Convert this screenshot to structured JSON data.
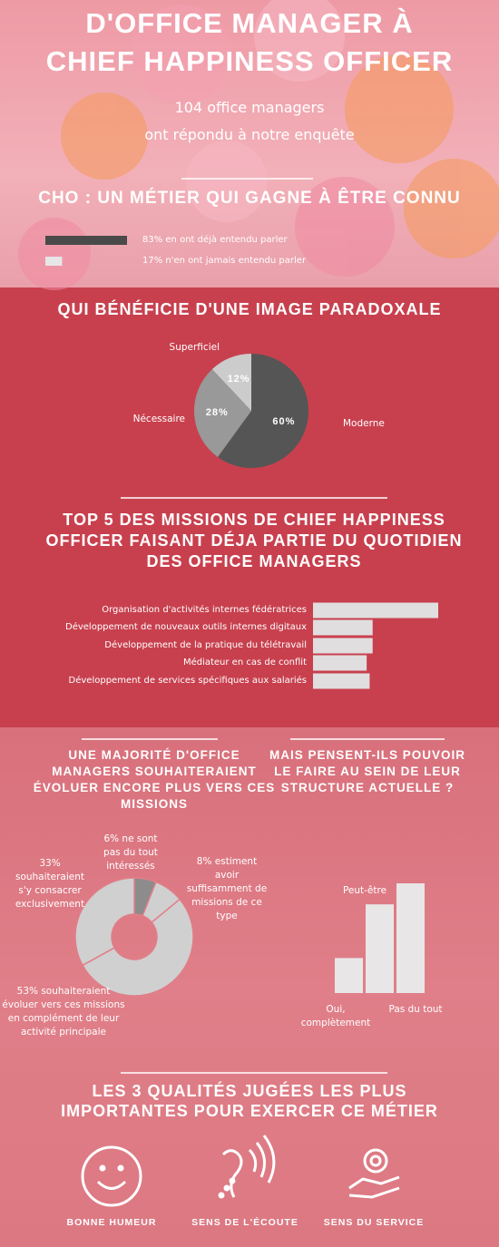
{
  "header": {
    "title": [
      "D'OFFICE MANAGER À",
      "CHIEF HAPPINESS OFFICER"
    ],
    "subtitle": [
      "104 office managers",
      "ont répondu à notre enquête"
    ]
  },
  "chart_data": [
    {
      "type": "bar",
      "orientation": "horizontal",
      "title": "CHO : UN MÉTIER QUI GAGNE À ÊTRE CONNU",
      "categories": [
        "83% en ont déjà entendu parler",
        "17% n'en ont jamais entendu parler"
      ],
      "values": [
        83,
        17
      ],
      "colors": [
        "#4a4a4a",
        "#e6e6e6"
      ]
    },
    {
      "type": "pie",
      "title": "QUI BÉNÉFICIE D'UNE IMAGE PARADOXALE",
      "categories": [
        "Moderne",
        "Nécessaire",
        "Superficiel"
      ],
      "values": [
        60,
        28,
        12
      ],
      "value_labels": [
        "60%",
        "28%",
        "12%"
      ],
      "colors": [
        "#555555",
        "#999999",
        "#cccccc"
      ]
    },
    {
      "type": "bar",
      "orientation": "horizontal",
      "title": [
        "TOP 5 DES MISSIONS DE CHIEF HAPPINESS",
        "OFFICER FAISANT DÉJA PARTIE DU QUOTIDIEN",
        "DES OFFICE MANAGERS"
      ],
      "categories": [
        "Organisation d'activités internes fédératrices",
        "Développement de nouveaux outils internes digitaux",
        "Développement de la pratique du télétravail",
        "Médiateur en cas de conflit",
        "Développement de services spécifiques aux salariés"
      ],
      "values": [
        42,
        20,
        20,
        18,
        19
      ],
      "color": "#e0dede"
    },
    {
      "type": "donut",
      "title": [
        "UNE MAJORITÉ D'OFFICE",
        "MANAGERS SOUHAITERAIENT",
        "ÉVOLUER ENCORE PLUS VERS CES",
        "MISSIONS"
      ],
      "categories": [
        "6% ne sont pas du tout intéressés",
        "8% estiment avoir suffisamment de missions de ce type",
        "53% souhaiteraient évoluer vers ces missions en complément de leur activité principale",
        "33% souhaiteraient s'y consacrer exclusivement"
      ],
      "values": [
        6,
        8,
        53,
        33
      ],
      "colors": [
        "#8c8c8c",
        "#d0d0d0",
        "#d0d0d0",
        "#d0d0d0"
      ]
    },
    {
      "type": "bar",
      "title": [
        "MAIS PENSENT-ILS POUVOIR",
        "LE FAIRE AU SEIN DE LEUR",
        "STRUCTURE ACTUELLE ?"
      ],
      "categories": [
        "Oui, complètement",
        "Peut-être",
        "Pas du tout"
      ],
      "values": [
        15,
        38,
        47
      ],
      "color": "#e8e6e6"
    }
  ],
  "qualities": {
    "title": [
      "LES 3 QUALITÉS JUGÉES LES PLUS",
      "IMPORTANTES POUR EXERCER CE MÉTIER"
    ],
    "items": [
      "BONNE HUMEUR",
      "SENS DE L'ÉCOUTE",
      "SENS DU SERVICE"
    ]
  }
}
